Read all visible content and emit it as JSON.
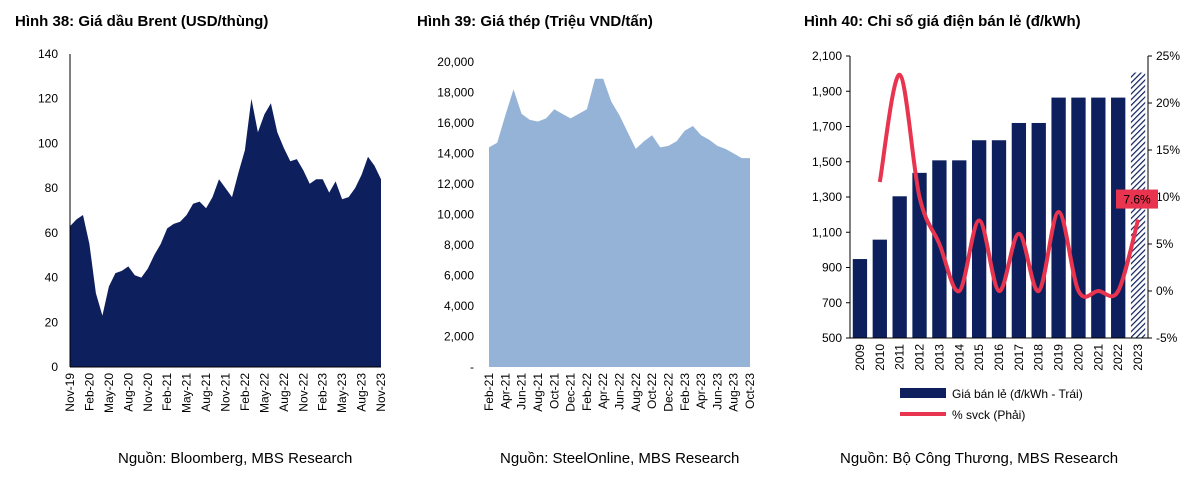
{
  "charts": [
    {
      "title": "Hình 38: Giá dầu Brent (USD/thùng)",
      "source": "Nguồn: Bloomberg, MBS Research",
      "chart_data": {
        "type": "area",
        "title": "Hình 38: Giá dầu Brent (USD/thùng)",
        "xlabel": "",
        "ylabel": "",
        "ylim": [
          0,
          140
        ],
        "yticks": [
          0,
          20,
          40,
          60,
          80,
          100,
          120,
          140
        ],
        "xticks": [
          "Nov-19",
          "Feb-20",
          "May-20",
          "Aug-20",
          "Nov-20",
          "Feb-21",
          "May-21",
          "Aug-21",
          "Nov-21",
          "Feb-22",
          "May-22",
          "Aug-22",
          "Nov-22",
          "Feb-23",
          "May-23",
          "Aug-23",
          "Nov-23"
        ],
        "color": "#0d1f5c",
        "grid": false,
        "x": [
          "Nov-19",
          "Dec-19",
          "Jan-20",
          "Feb-20",
          "Mar-20",
          "Apr-20",
          "May-20",
          "Jun-20",
          "Jul-20",
          "Aug-20",
          "Sep-20",
          "Oct-20",
          "Nov-20",
          "Dec-20",
          "Jan-21",
          "Feb-21",
          "Mar-21",
          "Apr-21",
          "May-21",
          "Jun-21",
          "Jul-21",
          "Aug-21",
          "Sep-21",
          "Oct-21",
          "Nov-21",
          "Dec-21",
          "Jan-22",
          "Feb-22",
          "Mar-22",
          "Apr-22",
          "May-22",
          "Jun-22",
          "Jul-22",
          "Aug-22",
          "Sep-22",
          "Oct-22",
          "Nov-22",
          "Dec-22",
          "Jan-23",
          "Feb-23",
          "Mar-23",
          "Apr-23",
          "May-23",
          "Jun-23",
          "Jul-23",
          "Aug-23",
          "Sep-23",
          "Oct-23",
          "Nov-23"
        ],
        "values": [
          63,
          66,
          68,
          55,
          33,
          23,
          36,
          42,
          43,
          45,
          41,
          40,
          44,
          50,
          55,
          62,
          64,
          65,
          68,
          73,
          74,
          71,
          76,
          84,
          80,
          76,
          87,
          97,
          120,
          105,
          113,
          118,
          105,
          98,
          92,
          93,
          88,
          82,
          84,
          84,
          78,
          83,
          75,
          76,
          80,
          86,
          94,
          90,
          84
        ]
      }
    },
    {
      "title": "Hình 39: Giá thép (Triệu VND/tấn)",
      "source": "Nguồn: SteelOnline, MBS Research",
      "chart_data": {
        "type": "area",
        "title": "Hình 39: Giá thép (Triệu VND/tấn)",
        "xlabel": "",
        "ylabel": "",
        "ylim": [
          0,
          20000
        ],
        "yticks": [
          "-",
          "2,000",
          "4,000",
          "6,000",
          "8,000",
          "10,000",
          "12,000",
          "14,000",
          "16,000",
          "18,000",
          "20,000"
        ],
        "xticks": [
          "Feb-21",
          "Apr-21",
          "Jun-21",
          "Aug-21",
          "Oct-21",
          "Dec-21",
          "Feb-22",
          "Apr-22",
          "Jun-22",
          "Aug-22",
          "Oct-22",
          "Dec-22",
          "Feb-23",
          "Apr-23",
          "Jun-23",
          "Aug-23",
          "Oct-23"
        ],
        "color": "#95b3d7",
        "grid": false,
        "x": [
          "Feb-21",
          "Mar-21",
          "Apr-21",
          "May-21",
          "Jun-21",
          "Jul-21",
          "Aug-21",
          "Sep-21",
          "Oct-21",
          "Nov-21",
          "Dec-21",
          "Jan-22",
          "Feb-22",
          "Mar-22",
          "Apr-22",
          "May-22",
          "Jun-22",
          "Jul-22",
          "Aug-22",
          "Sep-22",
          "Oct-22",
          "Nov-22",
          "Dec-22",
          "Jan-23",
          "Feb-23",
          "Mar-23",
          "Apr-23",
          "May-23",
          "Jun-23",
          "Jul-23",
          "Aug-23",
          "Sep-23",
          "Oct-23"
        ],
        "values": [
          14400,
          14700,
          16500,
          18200,
          16600,
          16200,
          16100,
          16300,
          16900,
          16600,
          16300,
          16600,
          16900,
          18900,
          18900,
          17400,
          16500,
          15400,
          14300,
          14800,
          15200,
          14400,
          14500,
          14800,
          15500,
          15800,
          15200,
          14900,
          14500,
          14300,
          14000,
          13700,
          13700
        ]
      }
    },
    {
      "title": "Hình 40: Chỉ số giá điện bán lẻ (đ/kWh)",
      "source": "Nguồn: Bộ Công Thương, MBS Research",
      "chart_data": {
        "type": "bar",
        "title": "Hình 40: Chỉ số giá điện bán lẻ (đ/kWh)",
        "xlabel": "",
        "ylabel": "",
        "categories": [
          "2009",
          "2010",
          "2011",
          "2012",
          "2013",
          "2014",
          "2015",
          "2016",
          "2017",
          "2018",
          "2019",
          "2020",
          "2021",
          "2022",
          "2023"
        ],
        "ylim": [
          500,
          2100
        ],
        "yticks": [
          "500",
          "700",
          "900",
          "1,100",
          "1,300",
          "1,500",
          "1,700",
          "1,900",
          "2,100"
        ],
        "y2lim": [
          -5,
          25
        ],
        "y2ticks": [
          "-5%",
          "0%",
          "5%",
          "10%",
          "15%",
          "20%",
          "25%"
        ],
        "grid": false,
        "legend_position": "bottom",
        "series": [
          {
            "name": "Giá bán lẻ (đ/kWh - Trái)",
            "axis": "left",
            "color": "#0d1f5c",
            "values": [
              948,
              1058,
              1304,
              1437,
              1508,
              1508,
              1622,
              1622,
              1720,
              1720,
              1864,
              1864,
              1864,
              1864,
              2006
            ],
            "hatched_last": true
          },
          {
            "name": "% svck (Phải)",
            "axis": "right",
            "color": "#e8344e",
            "values": [
              null,
              11.6,
              23.0,
              10.0,
              5.0,
              0.0,
              7.5,
              0.0,
              6.1,
              0.0,
              8.4,
              0.0,
              0.0,
              0.0,
              7.6
            ]
          }
        ],
        "annotations": [
          {
            "text": "7.6%",
            "category": "2023",
            "series": "% svck (Phải)"
          }
        ]
      }
    }
  ]
}
